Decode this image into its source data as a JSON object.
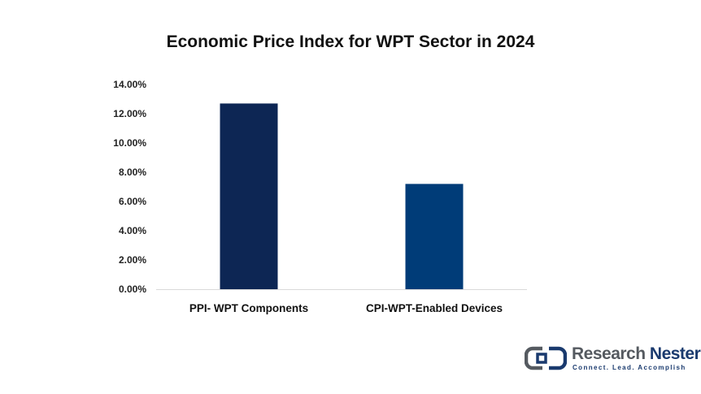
{
  "chart_data": {
    "type": "bar",
    "title": "Economic Price Index for WPT Sector in 2024",
    "categories": [
      "PPI- WPT Components",
      "CPI-WPT-Enabled Devices"
    ],
    "values": [
      12.7,
      7.2
    ],
    "value_unit": "%",
    "ylim": [
      0,
      14
    ],
    "yticks": [
      "0.00%",
      "2.00%",
      "4.00%",
      "6.00%",
      "8.00%",
      "10.00%",
      "12.00%",
      "14.00%"
    ],
    "xlabel": "",
    "ylabel": "",
    "grid": false,
    "legend": "none",
    "colors": [
      "#0d2654",
      "#003c78"
    ]
  },
  "logo": {
    "name_part1": "Research",
    "name_part2": "Nester",
    "tagline": "Connect. Lead. Accomplish",
    "colors": {
      "grey": "#555a60",
      "navy": "#1a3a6e"
    }
  }
}
